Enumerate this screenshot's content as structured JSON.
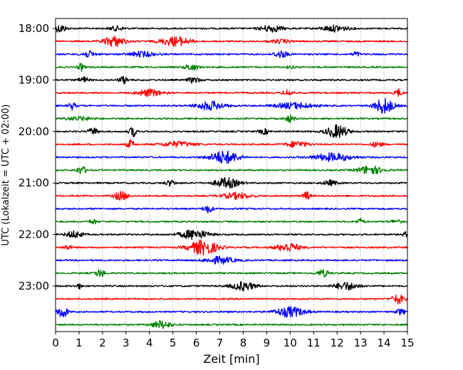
{
  "chart_data": {
    "type": "line",
    "subtype": "helicorder",
    "xlabel": "Zeit  [min]",
    "ylabel": "UTC (Lokalzeit = UTC + 02:00)",
    "xlim": [
      0,
      15
    ],
    "x_ticks": [
      "0",
      "1",
      "2",
      "3",
      "4",
      "5",
      "6",
      "7",
      "8",
      "9",
      "10",
      "11",
      "12",
      "13",
      "14",
      "15"
    ],
    "y_ticks": [
      "18:00",
      "19:00",
      "20:00",
      "21:00",
      "22:00",
      "23:00"
    ],
    "grid": "vertical dotted lines at every minute",
    "trace_interval_min": 15,
    "trace_colors": [
      "#000000",
      "#ff0000",
      "#0000ff",
      "#008000"
    ],
    "traces": [
      {
        "start": "18:00",
        "color": "#000000",
        "bursts": [
          [
            0.2,
            0.5,
            0.45
          ],
          [
            2.6,
            0.6,
            0.25
          ],
          [
            9.2,
            0.9,
            0.4
          ],
          [
            11.9,
            1.1,
            0.35
          ]
        ]
      },
      {
        "start": "18:15",
        "color": "#ff0000",
        "bursts": [
          [
            2.5,
            0.9,
            0.6
          ],
          [
            5.1,
            1.2,
            0.55
          ],
          [
            9.6,
            0.9,
            0.2
          ]
        ]
      },
      {
        "start": "18:30",
        "color": "#0000ff",
        "bursts": [
          [
            1.4,
            0.6,
            0.35
          ],
          [
            3.7,
            1.1,
            0.3
          ],
          [
            9.6,
            0.6,
            0.4
          ],
          [
            12.8,
            0.3,
            0.3
          ]
        ]
      },
      {
        "start": "18:45",
        "color": "#008000",
        "bursts": [
          [
            1.1,
            0.3,
            0.4
          ],
          [
            5.8,
            0.6,
            0.35
          ],
          [
            10.0,
            0.4,
            0.15
          ]
        ]
      },
      {
        "start": "19:00",
        "color": "#000000",
        "bursts": [
          [
            1.2,
            0.4,
            0.35
          ],
          [
            2.9,
            0.4,
            0.4
          ],
          [
            5.9,
            0.5,
            0.35
          ]
        ]
      },
      {
        "start": "19:15",
        "color": "#ff0000",
        "bursts": [
          [
            4.0,
            1.0,
            0.4
          ],
          [
            9.9,
            0.4,
            0.35
          ],
          [
            14.6,
            0.3,
            0.45
          ]
        ]
      },
      {
        "start": "19:30",
        "color": "#0000ff",
        "bursts": [
          [
            0.7,
            0.3,
            0.45
          ],
          [
            6.6,
            1.2,
            0.5
          ],
          [
            10.2,
            1.6,
            0.35
          ],
          [
            14.0,
            0.8,
            0.9
          ]
        ]
      },
      {
        "start": "19:45",
        "color": "#008000",
        "bursts": [
          [
            1.0,
            1.2,
            0.2
          ],
          [
            10.0,
            0.4,
            0.4
          ]
        ]
      },
      {
        "start": "20:00",
        "color": "#000000",
        "bursts": [
          [
            1.6,
            0.4,
            0.4
          ],
          [
            3.3,
            0.3,
            0.6
          ],
          [
            8.9,
            0.4,
            0.3
          ],
          [
            12.0,
            0.9,
            0.75
          ]
        ]
      },
      {
        "start": "20:15",
        "color": "#ff0000",
        "bursts": [
          [
            3.2,
            0.3,
            0.5
          ],
          [
            5.2,
            1.4,
            0.3
          ],
          [
            10.3,
            0.9,
            0.35
          ],
          [
            13.7,
            0.5,
            0.3
          ]
        ]
      },
      {
        "start": "20:30",
        "color": "#0000ff",
        "bursts": [
          [
            7.2,
            1.2,
            0.75
          ],
          [
            11.8,
            1.6,
            0.45
          ]
        ]
      },
      {
        "start": "20:45",
        "color": "#008000",
        "bursts": [
          [
            1.1,
            0.4,
            0.45
          ],
          [
            13.4,
            1.0,
            0.5
          ]
        ]
      },
      {
        "start": "21:00",
        "color": "#000000",
        "bursts": [
          [
            4.9,
            0.4,
            0.35
          ],
          [
            7.3,
            1.0,
            0.6
          ],
          [
            11.7,
            0.6,
            0.3
          ]
        ]
      },
      {
        "start": "21:15",
        "color": "#ff0000",
        "bursts": [
          [
            2.8,
            0.6,
            0.5
          ],
          [
            7.7,
            1.2,
            0.35
          ],
          [
            10.7,
            0.3,
            0.5
          ]
        ]
      },
      {
        "start": "21:30",
        "color": "#0000ff",
        "bursts": [
          [
            6.5,
            0.4,
            0.45
          ]
        ]
      },
      {
        "start": "21:45",
        "color": "#008000",
        "bursts": [
          [
            1.6,
            0.3,
            0.3
          ],
          [
            13.0,
            0.3,
            0.35
          ],
          [
            14.5,
            0.5,
            0.2
          ]
        ]
      },
      {
        "start": "22:00",
        "color": "#000000",
        "bursts": [
          [
            0.8,
            0.7,
            0.4
          ],
          [
            5.9,
            1.2,
            0.55
          ],
          [
            14.9,
            0.2,
            0.3
          ]
        ]
      },
      {
        "start": "22:15",
        "color": "#ff0000",
        "bursts": [
          [
            0.5,
            0.4,
            0.25
          ],
          [
            6.3,
            1.2,
            0.85
          ],
          [
            9.9,
            1.0,
            0.5
          ]
        ]
      },
      {
        "start": "22:30",
        "color": "#0000ff",
        "bursts": [
          [
            7.0,
            1.2,
            0.4
          ]
        ]
      },
      {
        "start": "22:45",
        "color": "#008000",
        "bursts": [
          [
            1.9,
            0.4,
            0.45
          ],
          [
            11.4,
            0.5,
            0.4
          ]
        ]
      },
      {
        "start": "23:00",
        "color": "#000000",
        "bursts": [
          [
            1.0,
            0.2,
            0.3
          ],
          [
            8.0,
            1.0,
            0.5
          ],
          [
            12.4,
            1.0,
            0.45
          ]
        ]
      },
      {
        "start": "23:15",
        "color": "#ff0000",
        "bursts": [
          [
            14.6,
            0.5,
            0.55
          ]
        ]
      },
      {
        "start": "23:30",
        "color": "#0000ff",
        "bursts": [
          [
            0.3,
            0.4,
            0.75
          ],
          [
            10.0,
            1.2,
            0.6
          ],
          [
            14.7,
            0.4,
            0.35
          ]
        ]
      },
      {
        "start": "23:45",
        "color": "#008000",
        "bursts": [
          [
            4.5,
            0.8,
            0.45
          ]
        ]
      }
    ]
  }
}
